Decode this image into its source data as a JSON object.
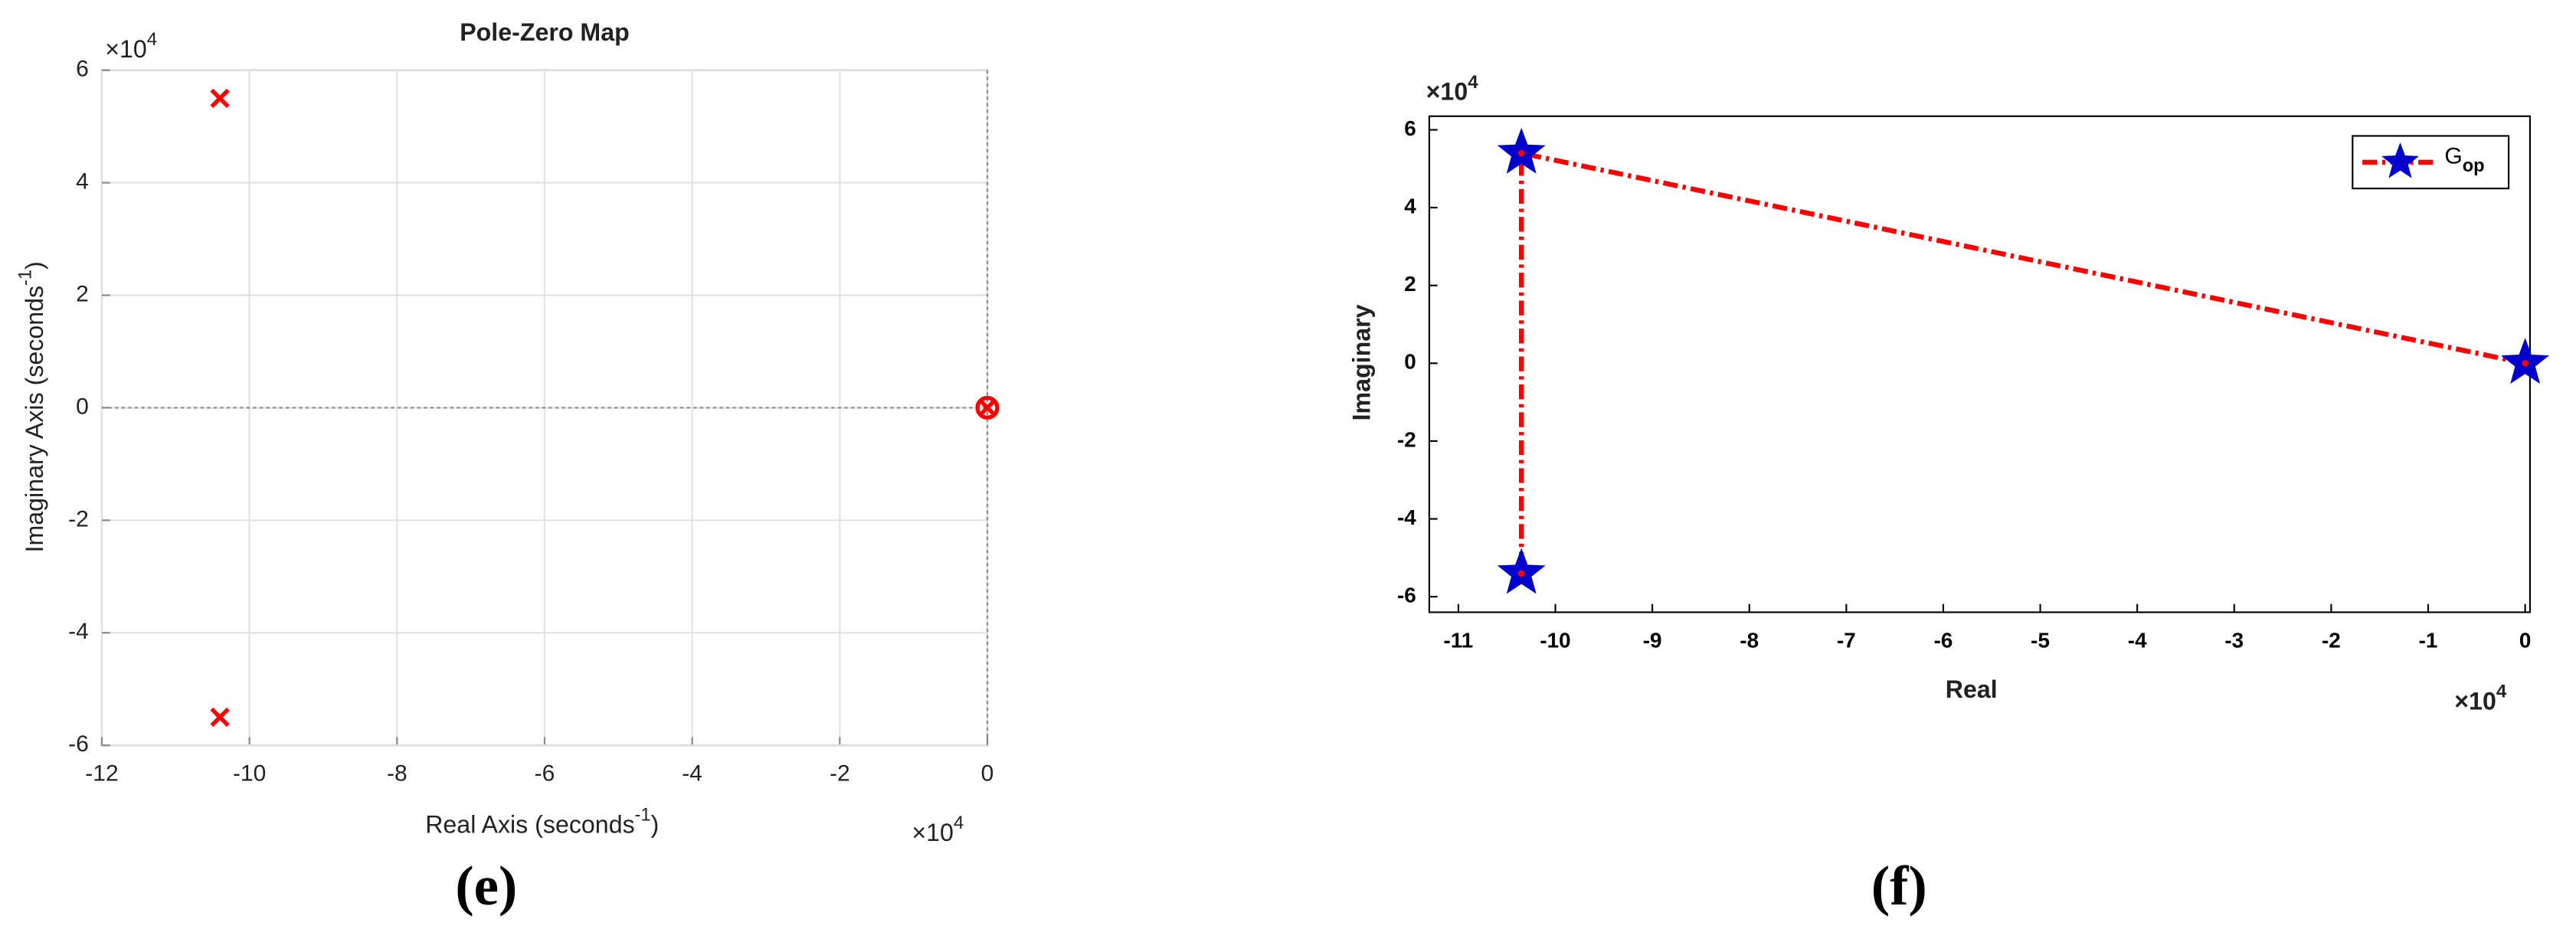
{
  "chart_data": [
    {
      "type": "scatter",
      "title": "Pole-Zero Map",
      "xlabel": [
        "Real Axis (seconds",
        "-1",
        ")"
      ],
      "ylabel": [
        "Imaginary Axis (seconds",
        "-1",
        ")"
      ],
      "x_scale": [
        "×10",
        "4"
      ],
      "y_scale": [
        "×10",
        "4"
      ],
      "xlim": [
        -12,
        0
      ],
      "ylim": [
        -6,
        6
      ],
      "xticks": [
        -12,
        -10,
        -8,
        -6,
        -4,
        -2,
        0
      ],
      "yticks": [
        -6,
        -4,
        -2,
        0,
        2,
        4,
        6
      ],
      "grid": true,
      "series": [
        {
          "marker": "x",
          "color": "#ff0000",
          "x": [
            -10.4,
            -10.4,
            0
          ],
          "values": [
            5.5,
            -5.5,
            0
          ]
        },
        {
          "marker": "o",
          "color": "#ff0000",
          "x": [
            0
          ],
          "values": [
            0
          ]
        }
      ],
      "caption": "(e)"
    },
    {
      "type": "line",
      "xlabel": "Real",
      "ylabel": "Imaginary",
      "x_scale": [
        "×10",
        "4"
      ],
      "y_scale": [
        "×10",
        "4"
      ],
      "xlim": [
        -11.3,
        0.05
      ],
      "ylim": [
        -6.4,
        6.35
      ],
      "xticks": [
        -11,
        -10,
        -9,
        -8,
        -7,
        -6,
        -5,
        -4,
        -3,
        -2,
        -1,
        0
      ],
      "yticks": [
        -6,
        -4,
        -2,
        0,
        2,
        4,
        6
      ],
      "grid": false,
      "legend": "upper right",
      "series": [
        {
          "name": "G",
          "name_subscript": "op",
          "color": "#ff0000",
          "marker": "star",
          "marker_color": "#0000cc",
          "x": [
            0,
            -10.35,
            -10.35
          ],
          "values": [
            0,
            5.4,
            -5.4
          ]
        }
      ],
      "caption": "(f)"
    }
  ]
}
